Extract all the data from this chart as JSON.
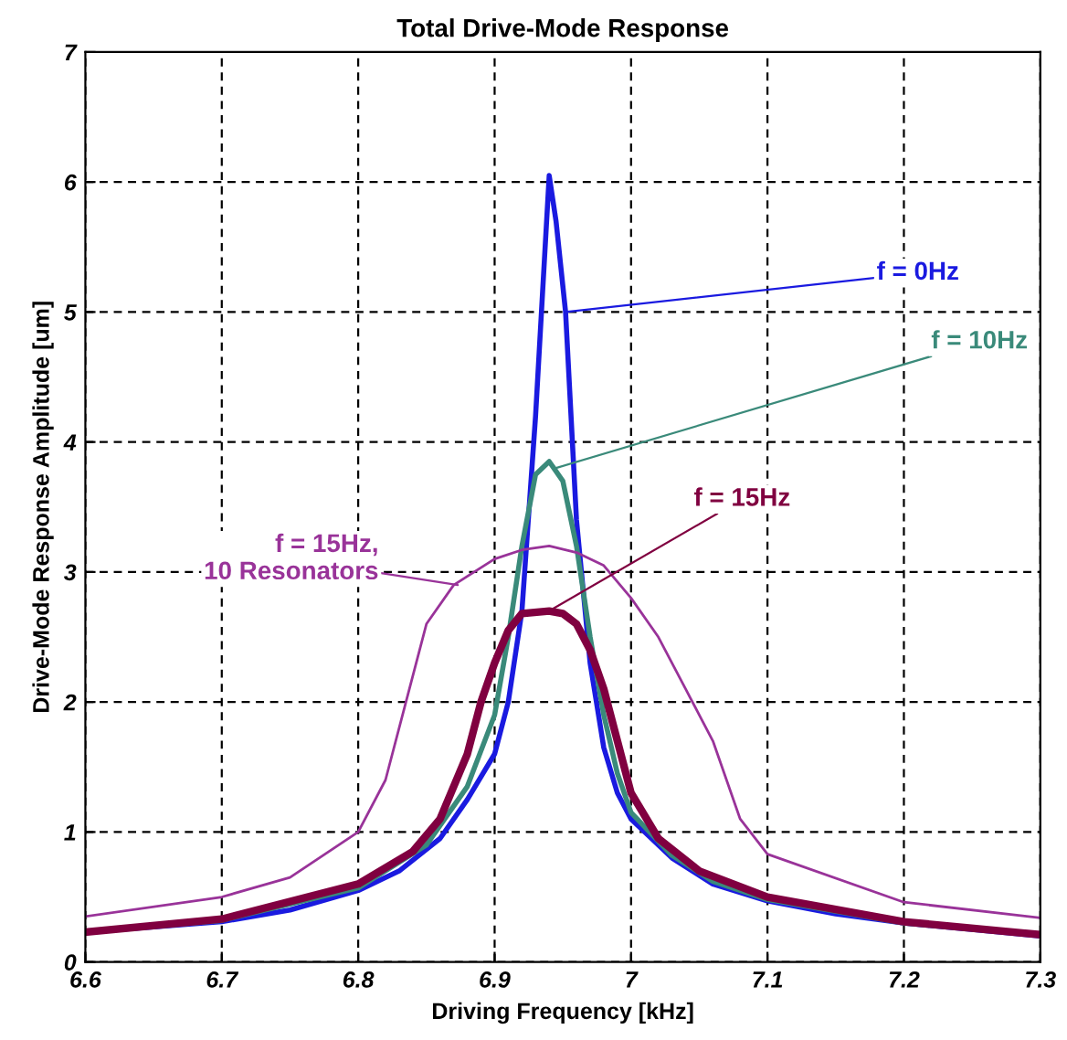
{
  "chart_data": {
    "type": "line",
    "title": "Total Drive-Mode Response",
    "xlabel": "Driving Frequency [kHz]",
    "ylabel": "Drive-Mode Response Amplitude [um]",
    "xlim": [
      6.6,
      7.3
    ],
    "xticks": [
      6.6,
      6.7,
      6.8,
      6.9,
      7,
      7.1,
      7.2,
      7.3
    ],
    "ylim": [
      0,
      7
    ],
    "yticks": [
      0,
      1,
      2,
      3,
      4,
      5,
      6,
      7
    ],
    "grid": true,
    "line_style": "solid",
    "marker": "none",
    "series": [
      {
        "color": "#1a1ae0",
        "x": [
          6.6,
          6.65,
          6.7,
          6.75,
          6.8,
          6.83,
          6.86,
          6.88,
          6.9,
          6.91,
          6.92,
          6.93,
          6.94,
          6.945,
          6.952,
          6.96,
          6.97,
          6.98,
          6.99,
          7.0,
          7.03,
          7.06,
          7.1,
          7.15,
          7.2,
          7.25,
          7.3
        ],
        "values": [
          0.23,
          0.27,
          0.31,
          0.4,
          0.55,
          0.7,
          0.95,
          1.25,
          1.6,
          2.0,
          2.7,
          4.2,
          6.05,
          5.7,
          5.0,
          3.4,
          2.3,
          1.65,
          1.3,
          1.1,
          0.8,
          0.6,
          0.47,
          0.37,
          0.3,
          0.25,
          0.2
        ]
      },
      {
        "color": "#3a8a7a",
        "x": [
          6.6,
          6.7,
          6.8,
          6.85,
          6.88,
          6.9,
          6.91,
          6.92,
          6.93,
          6.94,
          6.95,
          6.96,
          6.97,
          6.98,
          6.99,
          7.0,
          7.03,
          7.06,
          7.1,
          7.2,
          7.3
        ],
        "values": [
          0.23,
          0.32,
          0.57,
          0.9,
          1.35,
          1.9,
          2.5,
          3.2,
          3.75,
          3.85,
          3.7,
          3.2,
          2.5,
          1.9,
          1.45,
          1.15,
          0.82,
          0.62,
          0.48,
          0.3,
          0.21
        ]
      },
      {
        "color": "#800040",
        "x": [
          6.6,
          6.7,
          6.8,
          6.84,
          6.86,
          6.88,
          6.89,
          6.9,
          6.91,
          6.92,
          6.94,
          6.95,
          6.96,
          6.97,
          6.98,
          6.99,
          7.0,
          7.02,
          7.05,
          7.1,
          7.2,
          7.3
        ],
        "values": [
          0.23,
          0.33,
          0.6,
          0.85,
          1.1,
          1.6,
          2.0,
          2.3,
          2.55,
          2.68,
          2.7,
          2.68,
          2.6,
          2.4,
          2.1,
          1.7,
          1.3,
          0.95,
          0.7,
          0.5,
          0.31,
          0.21
        ]
      },
      {
        "color": "#993399",
        "x": [
          6.6,
          6.7,
          6.75,
          6.8,
          6.82,
          6.835,
          6.85,
          6.87,
          6.9,
          6.92,
          6.94,
          6.96,
          6.98,
          7.0,
          7.02,
          7.04,
          7.06,
          7.08,
          7.1,
          7.2,
          7.3
        ],
        "values": [
          0.35,
          0.5,
          0.65,
          1.0,
          1.4,
          2.0,
          2.6,
          2.9,
          3.1,
          3.17,
          3.2,
          3.15,
          3.05,
          2.8,
          2.5,
          2.1,
          1.7,
          1.1,
          0.83,
          0.46,
          0.34
        ]
      }
    ],
    "annotations": [
      {
        "text": "f = 0Hz",
        "x": 6.952,
        "y": 5.0
      },
      {
        "text": "f = 10Hz",
        "x": 6.945,
        "y": 3.8
      },
      {
        "text": "f = 15Hz",
        "x": 6.94,
        "y": 2.7
      },
      {
        "text": "f = 15Hz,\n10 Resonators",
        "x": 6.873,
        "y": 2.9
      }
    ]
  }
}
